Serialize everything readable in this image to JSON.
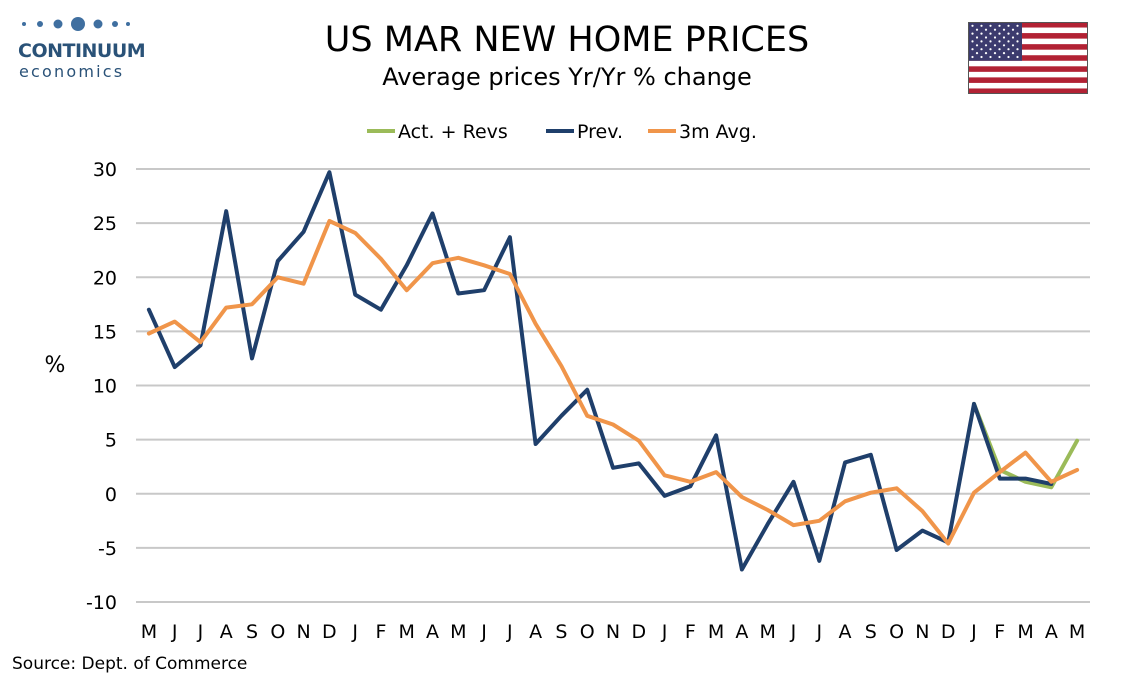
{
  "brand": {
    "name": "CONTINUUM",
    "sub": "economics"
  },
  "header": {
    "title": "US MAR NEW HOME PRICES",
    "subtitle": "Average prices Yr/Yr % change"
  },
  "flag_icon": "us-flag-icon",
  "source": "Source: Dept. of Commerce",
  "colors": {
    "act": "#9bbb59",
    "prev": "#1f3f6b",
    "avg": "#f0954a",
    "grid": "#c8c8c8"
  },
  "chart_data": {
    "type": "line",
    "ylabel": "%",
    "ylim": [
      -10,
      30
    ],
    "yticks": [
      -10,
      -5,
      0,
      5,
      10,
      15,
      20,
      25,
      30
    ],
    "grid": "horizontal",
    "legend_position": "top-center",
    "categories": [
      "M",
      "J",
      "J",
      "A",
      "S",
      "O",
      "N",
      "D",
      "J",
      "F",
      "M",
      "A",
      "M",
      "J",
      "J",
      "A",
      "S",
      "O",
      "N",
      "D",
      "J",
      "F",
      "M",
      "A",
      "M",
      "J",
      "J",
      "A",
      "S",
      "O",
      "N",
      "D",
      "J",
      "F",
      "M",
      "A",
      "M"
    ],
    "series": [
      {
        "name": "Act. + Revs",
        "color": "#9bbb59",
        "values": [
          null,
          null,
          null,
          null,
          null,
          null,
          null,
          null,
          null,
          null,
          null,
          null,
          null,
          null,
          null,
          null,
          null,
          null,
          null,
          null,
          null,
          null,
          null,
          null,
          null,
          null,
          null,
          null,
          null,
          null,
          null,
          null,
          8.3,
          2.2,
          1.1,
          0.6,
          4.9
        ]
      },
      {
        "name": "Prev.",
        "color": "#1f3f6b",
        "values": [
          17.0,
          11.7,
          13.7,
          26.1,
          12.5,
          21.5,
          24.2,
          29.7,
          18.4,
          17.0,
          21.1,
          25.9,
          18.5,
          18.8,
          23.7,
          4.6,
          7.2,
          9.6,
          2.4,
          2.8,
          -0.2,
          0.7,
          5.4,
          -7.0,
          -2.8,
          1.1,
          -6.2,
          2.9,
          3.6,
          -5.2,
          -3.4,
          -4.5,
          8.3,
          1.4,
          1.4,
          0.9,
          null
        ]
      },
      {
        "name": "3m Avg.",
        "color": "#f0954a",
        "values": [
          14.8,
          15.9,
          14.0,
          17.2,
          17.5,
          20.0,
          19.4,
          25.2,
          24.1,
          21.7,
          18.8,
          21.3,
          21.8,
          21.1,
          20.3,
          15.7,
          11.8,
          7.2,
          6.4,
          4.9,
          1.7,
          1.1,
          2.0,
          -0.3,
          -1.5,
          -2.9,
          -2.5,
          -0.7,
          0.1,
          0.5,
          -1.6,
          -4.6,
          0.1,
          2.0,
          3.8,
          1.1,
          2.2
        ]
      }
    ]
  }
}
